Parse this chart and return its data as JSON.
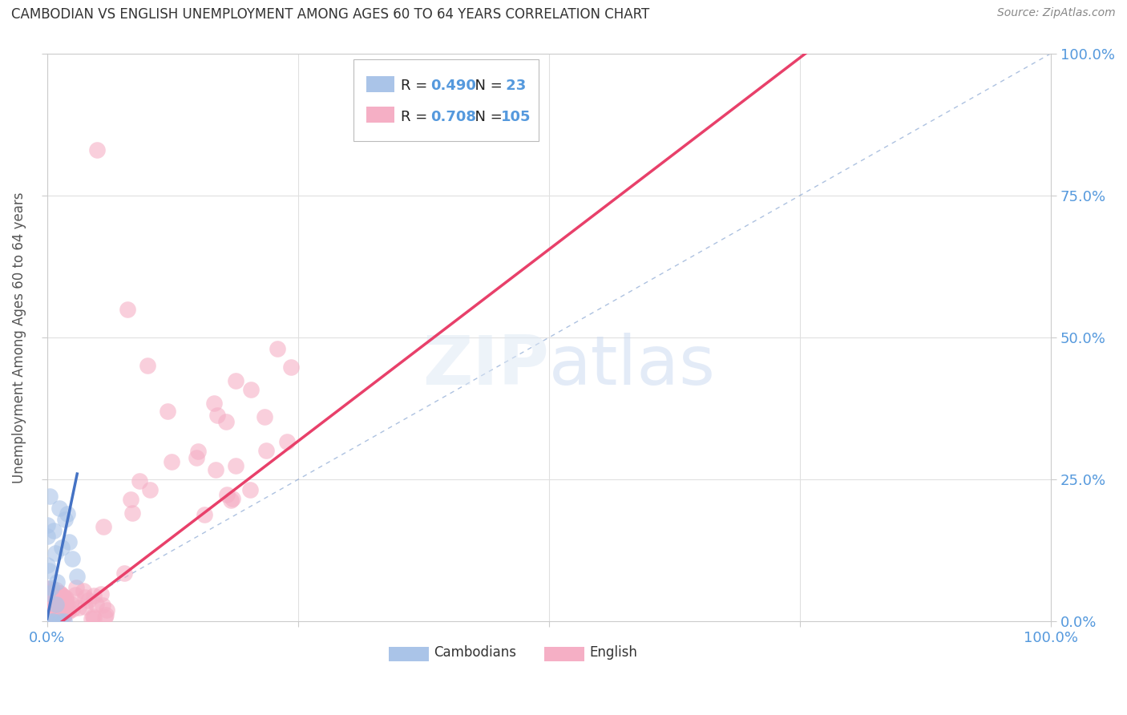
{
  "title": "CAMBODIAN VS ENGLISH UNEMPLOYMENT AMONG AGES 60 TO 64 YEARS CORRELATION CHART",
  "source": "Source: ZipAtlas.com",
  "ylabel": "Unemployment Among Ages 60 to 64 years",
  "legend_cambodian": "Cambodians",
  "legend_english": "English",
  "cambodian_R": 0.49,
  "cambodian_N": 23,
  "english_R": 0.708,
  "english_N": 105,
  "cambodian_color": "#aac4e8",
  "english_color": "#f5afc5",
  "cambodian_line_color": "#4472c4",
  "english_line_color": "#e8406a",
  "diagonal_color": "#7799cc",
  "background_color": "#ffffff",
  "grid_color": "#e0e0e0",
  "tick_color": "#5599dd",
  "watermark_color": "#d0dff0",
  "watermark_text": "ZIPatlas",
  "camb_seed": 42,
  "eng_seed": 99,
  "eng_line_slope": 1.35,
  "eng_line_intercept": -0.02,
  "camb_line_slope": 8.5,
  "camb_line_intercept": 0.005
}
